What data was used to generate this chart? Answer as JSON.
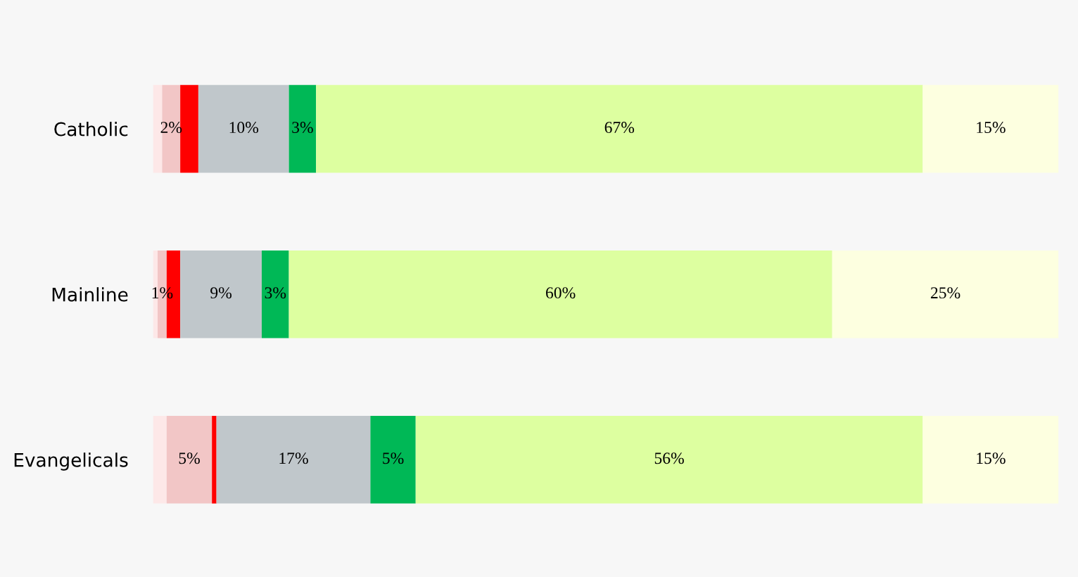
{
  "chart_data": {
    "type": "bar",
    "orientation": "horizontal",
    "stacked": true,
    "categories": [
      "Catholic",
      "Mainline",
      "Evangelicals"
    ],
    "series": [
      {
        "color": "#fde8e8",
        "values": [
          1,
          0.5,
          1.5
        ],
        "value_labels": [
          null,
          null,
          null
        ]
      },
      {
        "color": "#f2c6c6",
        "values": [
          2,
          1,
          5
        ],
        "value_labels": [
          "2%",
          "1%",
          "5%"
        ]
      },
      {
        "color": "#ff0000",
        "values": [
          2,
          1.5,
          0.5
        ],
        "value_labels": [
          null,
          null,
          null
        ]
      },
      {
        "color": "#c0c7cb",
        "values": [
          10,
          9,
          17
        ],
        "value_labels": [
          "10%",
          "9%",
          "17%"
        ]
      },
      {
        "color": "#00b856",
        "values": [
          3,
          3,
          5
        ],
        "value_labels": [
          "3%",
          "3%",
          "5%"
        ]
      },
      {
        "color": "#ddffa0",
        "values": [
          67,
          60,
          56
        ],
        "value_labels": [
          "67%",
          "60%",
          "56%"
        ]
      },
      {
        "color": "#fdffe0",
        "values": [
          15,
          25,
          15
        ],
        "value_labels": [
          "15%",
          "25%",
          "15%"
        ]
      }
    ],
    "grid": false
  }
}
